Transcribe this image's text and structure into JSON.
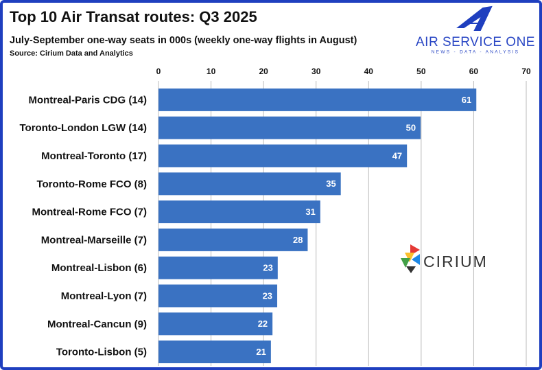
{
  "chart_data": {
    "type": "hbar",
    "title": "Top 10 Air Transat routes: Q3 2025",
    "subtitle": "July-September one-way seats in 000s (weekly one-way flights in August)",
    "source": "Source: Cirium Data and Analytics",
    "categories": [
      "Montreal-Paris CDG (14)",
      "Toronto-London LGW (14)",
      "Montreal-Toronto (17)",
      "Toronto-Rome FCO (8)",
      "Montreal-Rome FCO (7)",
      "Montreal-Marseille (7)",
      "Montreal-Lisbon (6)",
      "Montreal-Lyon (7)",
      "Montreal-Cancun (9)",
      "Toronto-Lisbon (5)"
    ],
    "values": [
      60.5,
      49.9,
      47.3,
      34.7,
      30.8,
      28.4,
      22.7,
      22.6,
      21.7,
      21.4
    ],
    "value_labels": [
      "61",
      "50",
      "47",
      "35",
      "31",
      "28",
      "23",
      "23",
      "22",
      "21"
    ],
    "color": "#3a72c2",
    "xlim": [
      0,
      70
    ],
    "xticks": [
      0,
      10,
      20,
      30,
      40,
      50,
      60,
      70
    ],
    "grid": true
  },
  "logos": {
    "brand": "AIR SERVICE ONE",
    "tagline": "NEWS - DATA - ANALYSIS",
    "partner": "CIRIUM"
  }
}
